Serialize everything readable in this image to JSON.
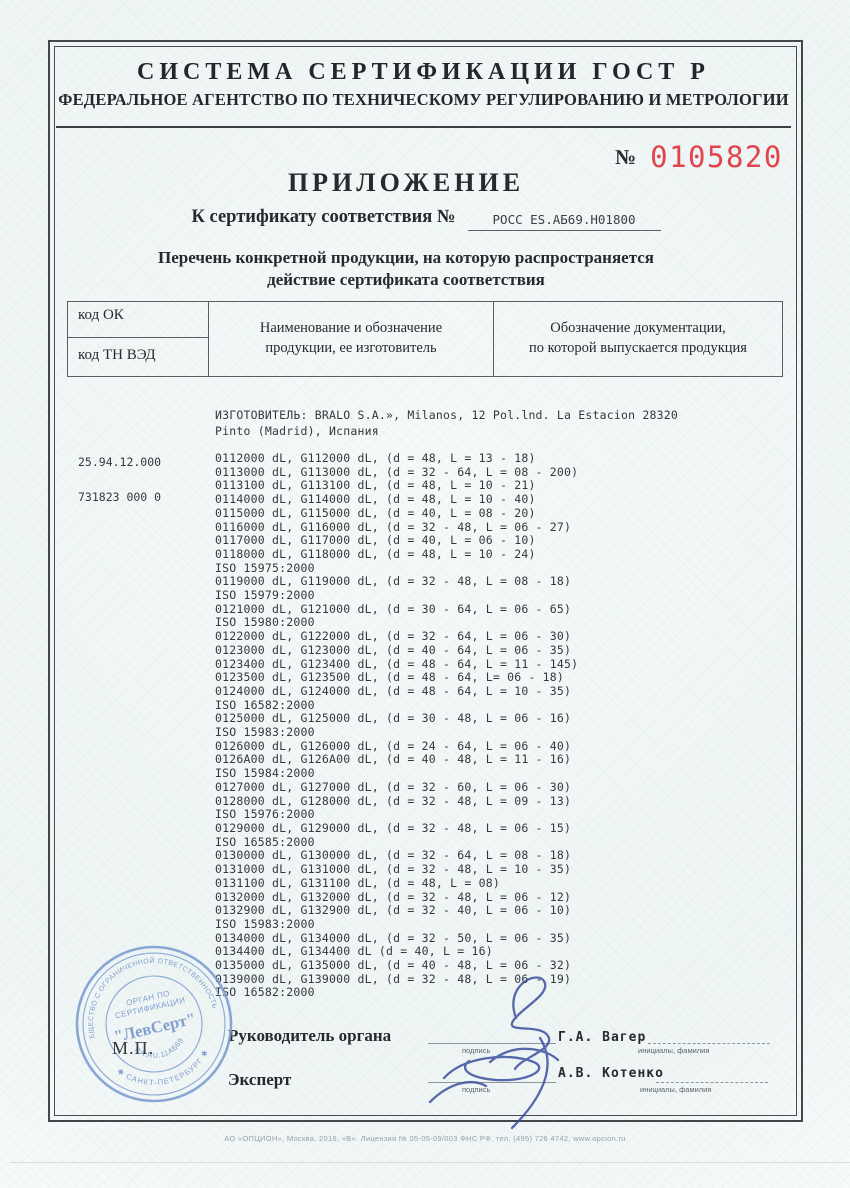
{
  "header": {
    "title": "СИСТЕМА СЕРТИФИКАЦИИ ГОСТ Р",
    "subtitle": "ФЕДЕРАЛЬНОЕ АГЕНТСТВО ПО ТЕХНИЧЕСКОМУ РЕГУЛИРОВАНИЮ И МЕТРОЛОГИИ"
  },
  "blank_number": {
    "label": "№",
    "value": "0105820",
    "color": "#e2434c"
  },
  "title_block": {
    "doc_title": "ПРИЛОЖЕНИЕ",
    "cert_line_label": "К сертификату соответствия №",
    "cert_number": "РОСС ES.АБ69.Н01800",
    "description_line1": "Перечень конкретной продукции,  на которую распространяется",
    "description_line2": "действие сертификата соответствия"
  },
  "table": {
    "col1_row1": "код ОК",
    "col1_row2": "код ТН ВЭД",
    "col2_line1": "Наименование и обозначение",
    "col2_line2": "продукции, ее изготовитель",
    "col3_line1": "Обозначение документации,",
    "col3_line2": "по которой выпускается продукция"
  },
  "codes": {
    "ok_code": "25.94.12.000",
    "tnved_code": "731823 000 0"
  },
  "manufacturer": {
    "line1": "ИЗГОТОВИТЕЛЬ: BRALO S.A.», Milanos, 12 Pol.lnd. La Estacion 28320",
    "line2": "Pinto (Madrid), Испания"
  },
  "products": {
    "lines": [
      "0112000 dL, G112000 dL, (d = 48, L = 13 - 18)",
      "0113000 dL, G113000 dL, (d = 32 - 64, L = 08 - 200)",
      "0113100 dL, G113100 dL, (d = 48, L = 10 - 21)",
      "0114000 dL, G114000 dL, (d = 48, L = 10 - 40)",
      "0115000 dL, G115000 dL, (d = 40, L = 08 - 20)",
      "0116000 dL, G116000 dL, (d = 32 - 48, L = 06 - 27)",
      "0117000 dL, G117000 dL, (d = 40, L = 06 - 10)",
      "0118000 dL, G118000 dL, (d = 48, L = 10 - 24)",
      "ISO 15975:2000",
      "0119000 dL, G119000 dL, (d = 32 - 48, L = 08 - 18)",
      "ISO 15979:2000",
      "0121000 dL, G121000 dL, (d = 30 - 64, L = 06 - 65)",
      "ISO 15980:2000",
      "0122000 dL, G122000 dL, (d = 32 - 64, L = 06 - 30)",
      "0123000 dL, G123000 dL, (d = 40 - 64, L = 06 - 35)",
      "0123400 dL, G123400 dL, (d = 48 - 64, L = 11 - 145)",
      "0123500 dL, G123500 dL, (d = 48 - 64, L= 06 - 18)",
      "0124000 dL, G124000 dL, (d = 48 - 64, L = 10 - 35)",
      "ISO 16582:2000",
      "0125000 dL, G125000 dL, (d = 30 - 48, L = 06 - 16)",
      "ISO 15983:2000",
      "0126000 dL, G126000 dL, (d = 24 - 64, L = 06 - 40)",
      "0126A00 dL, G126A00 dL, (d = 40 - 48, L = 11 - 16)",
      "ISO 15984:2000",
      "0127000 dL, G127000 dL, (d = 32 - 60, L = 06 - 30)",
      "0128000 dL, G128000 dL, (d = 32 - 48, L = 09 - 13)",
      "ISO 15976:2000",
      "0129000 dL, G129000 dL, (d = 32 - 48, L = 06 - 15)",
      "ISO 16585:2000",
      "0130000 dL, G130000 dL, (d = 32 - 64, L = 08 - 18)",
      "0131000 dL, G131000 dL, (d = 32 - 48, L = 10 - 35)",
      "0131100 dL, G131100 dL, (d = 48, L = 08)",
      "0132000 dL, G132000 dL, (d = 32 - 48, L = 06 - 12)",
      "0132900 dL, G132900 dL, (d = 32 - 40, L = 06 - 10)",
      "ISO 15983:2000",
      "0134000 dL, G134000 dL, (d = 32 - 50, L = 06 - 35)",
      "0134400 dL, G134400 dL (d = 40, L = 16)",
      "0135000 dL, G135000 dL, (d = 40 - 48, L = 06 - 32)",
      "0139000 dL, G139000 dL, (d = 32 - 48, L = 06 - 19)",
      "ISO 16582:2000"
    ]
  },
  "signatures": {
    "row1_label": "Руководитель органа",
    "row1_sublabel": "подпись",
    "row1_name": "Г.А. Вагер",
    "row1_name_sublabel": "инициалы, фамилия",
    "row2_label": "Эксперт",
    "row2_sublabel": "подпись",
    "row2_name": "А.В. Котенко",
    "row2_name_sublabel": "инициалы, фамилия",
    "ink_color": "#3d4fa0"
  },
  "stamp": {
    "ring_top": "ОБЩЕСТВО С ОГРАНИЧЕННОЙ ОТВЕТСТВЕННОСТЬЮ",
    "ring_bottom": "✱ САНКТ-ПЕТЕРБУРГ ✱",
    "inner_line1": "ОРГАН ПО",
    "inner_line2": "СЕРТИФИКАЦИИ",
    "center_name": "\"ЛевСерт\"",
    "reg_number": "RA.RU.11АБ69",
    "mp_label": "М.П.",
    "color": "#7b9bd2"
  },
  "footer": {
    "fine_print": "АО «ОПЦИОН», Москва, 2016, «В».  Лицензия № 05-05-09/003 ФНС РФ, тел. (495) 726 4742, www.opcion.ru"
  }
}
